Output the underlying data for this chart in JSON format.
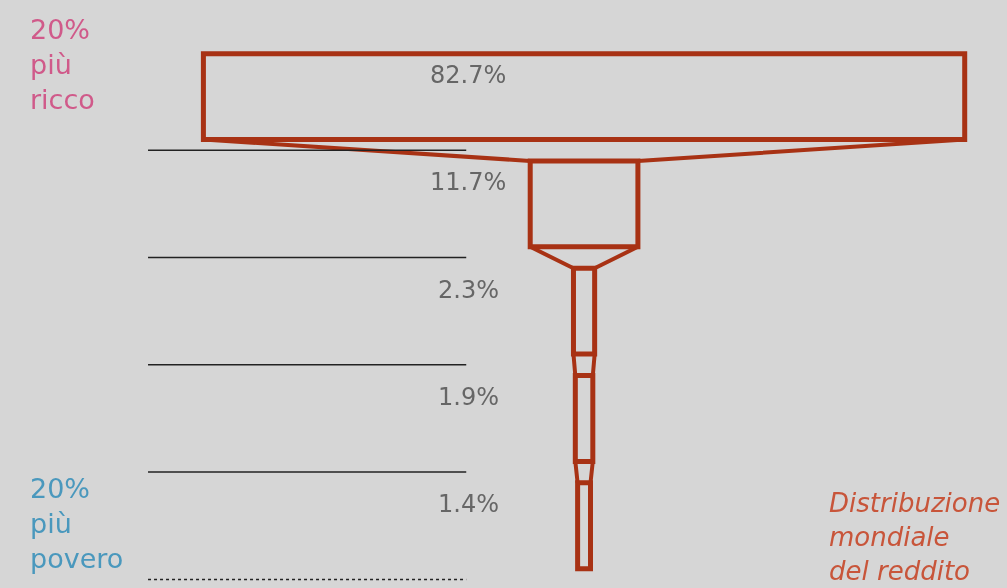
{
  "chart_data": {
    "type": "other",
    "title": "Distribuzione\nmondiale\ndel reddito",
    "categories": [
      null,
      null,
      null,
      null,
      null
    ],
    "values": [
      82.7,
      11.7,
      2.3,
      1.9,
      1.4
    ],
    "value_labels": [
      "82.7%",
      "11.7%",
      "2.3%",
      "1.9%",
      "1.4%"
    ],
    "color": "#a83214",
    "annotations": [
      "20%\npiù\nricco",
      "20%\npiù\npovero"
    ]
  }
}
